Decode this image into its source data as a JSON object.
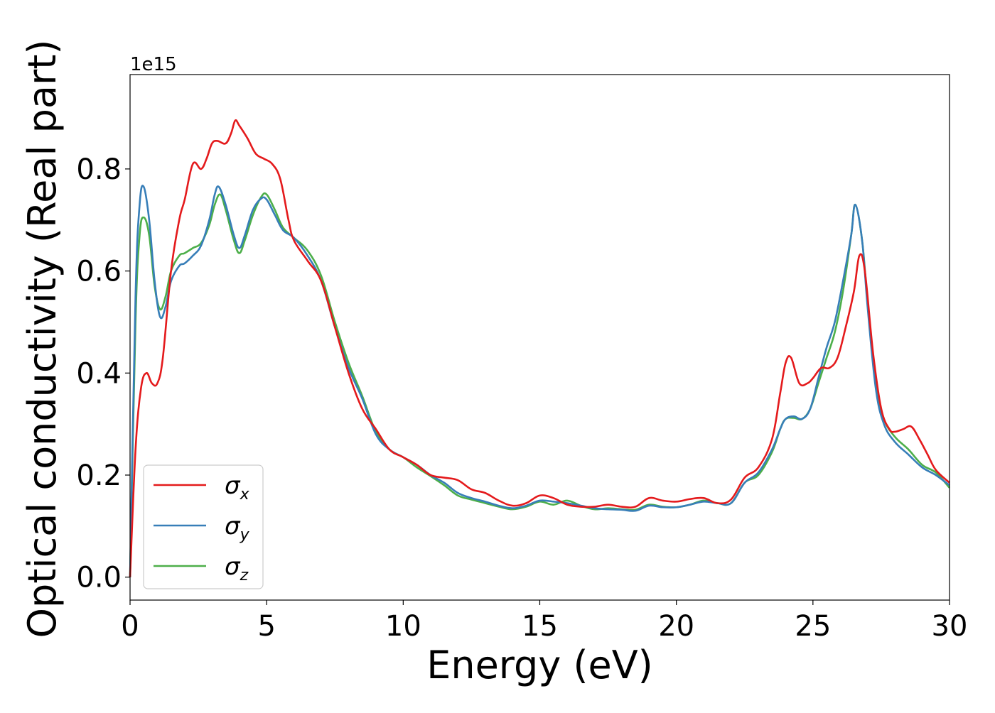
{
  "chart_data": {
    "type": "line",
    "xlabel": "Energy (eV)",
    "ylabel": "Optical conductivity (Real part)",
    "y_offset_label": "1e15",
    "xlim": [
      0,
      30
    ],
    "ylim": [
      -0.045,
      0.985
    ],
    "x_ticks": [
      0,
      5,
      10,
      15,
      20,
      25,
      30
    ],
    "x_tick_labels": [
      "0",
      "5",
      "10",
      "15",
      "20",
      "25",
      "30"
    ],
    "y_ticks": [
      0.0,
      0.2,
      0.4,
      0.6,
      0.8
    ],
    "y_tick_labels": [
      "0.0",
      "0.2",
      "0.4",
      "0.6",
      "0.8"
    ],
    "grid": false,
    "legend_position": "lower-left",
    "series": [
      {
        "name": "σ",
        "subscript": "x",
        "color": "#e41a1c",
        "x": [
          0,
          0.2,
          0.4,
          0.6,
          0.8,
          1.0,
          1.2,
          1.5,
          1.8,
          2.0,
          2.3,
          2.6,
          2.8,
          3.0,
          3.2,
          3.5,
          3.7,
          3.85,
          4.0,
          4.3,
          4.6,
          4.9,
          5.2,
          5.5,
          5.8,
          6.0,
          6.5,
          7.0,
          7.5,
          8.0,
          8.5,
          9.0,
          9.5,
          10.0,
          10.5,
          11.0,
          11.5,
          12.0,
          12.5,
          13.0,
          13.5,
          14.0,
          14.5,
          15.0,
          15.5,
          16.0,
          16.5,
          17.0,
          17.5,
          18.0,
          18.5,
          19.0,
          19.5,
          20.0,
          20.5,
          21.0,
          21.5,
          22.0,
          22.5,
          23.0,
          23.5,
          23.8,
          24.0,
          24.2,
          24.5,
          24.8,
          25.0,
          25.3,
          25.6,
          25.9,
          26.2,
          26.5,
          26.7,
          26.9,
          27.2,
          27.5,
          27.8,
          28.0,
          28.3,
          28.6,
          28.9,
          29.2,
          29.5,
          30.0
        ],
        "values": [
          0.0,
          0.25,
          0.37,
          0.4,
          0.38,
          0.38,
          0.43,
          0.6,
          0.7,
          0.74,
          0.81,
          0.8,
          0.82,
          0.85,
          0.855,
          0.85,
          0.87,
          0.895,
          0.885,
          0.86,
          0.83,
          0.82,
          0.81,
          0.78,
          0.7,
          0.66,
          0.62,
          0.58,
          0.49,
          0.4,
          0.33,
          0.29,
          0.25,
          0.235,
          0.22,
          0.2,
          0.195,
          0.19,
          0.172,
          0.165,
          0.15,
          0.14,
          0.145,
          0.16,
          0.155,
          0.142,
          0.138,
          0.138,
          0.142,
          0.138,
          0.138,
          0.155,
          0.15,
          0.148,
          0.153,
          0.155,
          0.145,
          0.152,
          0.195,
          0.215,
          0.27,
          0.36,
          0.42,
          0.43,
          0.38,
          0.38,
          0.39,
          0.41,
          0.41,
          0.43,
          0.49,
          0.56,
          0.63,
          0.6,
          0.44,
          0.33,
          0.29,
          0.285,
          0.29,
          0.295,
          0.27,
          0.24,
          0.21,
          0.185
        ]
      },
      {
        "name": "σ",
        "subscript": "y",
        "color": "#377eb8",
        "x": [
          0,
          0.2,
          0.35,
          0.5,
          0.7,
          0.9,
          1.1,
          1.3,
          1.5,
          1.8,
          2.0,
          2.3,
          2.6,
          2.9,
          3.1,
          3.25,
          3.5,
          3.8,
          4.0,
          4.2,
          4.5,
          4.8,
          5.0,
          5.3,
          5.6,
          6.0,
          6.5,
          7.0,
          7.5,
          8.0,
          8.5,
          9.0,
          9.5,
          10.0,
          10.5,
          11.0,
          11.5,
          12.0,
          12.5,
          13.0,
          13.5,
          14.0,
          14.5,
          15.0,
          15.5,
          16.0,
          16.5,
          17.0,
          17.5,
          18.0,
          18.5,
          19.0,
          19.5,
          20.0,
          20.5,
          21.0,
          21.5,
          22.0,
          22.5,
          23.0,
          23.5,
          23.8,
          24.0,
          24.3,
          24.6,
          24.9,
          25.2,
          25.5,
          25.8,
          26.1,
          26.4,
          26.55,
          26.8,
          27.0,
          27.3,
          27.6,
          28.0,
          28.5,
          29.0,
          29.5,
          30.0
        ],
        "values": [
          0.0,
          0.55,
          0.73,
          0.765,
          0.7,
          0.58,
          0.51,
          0.53,
          0.58,
          0.61,
          0.615,
          0.63,
          0.65,
          0.7,
          0.75,
          0.765,
          0.73,
          0.67,
          0.645,
          0.67,
          0.72,
          0.742,
          0.74,
          0.71,
          0.68,
          0.665,
          0.63,
          0.58,
          0.49,
          0.41,
          0.35,
          0.28,
          0.25,
          0.235,
          0.22,
          0.2,
          0.185,
          0.165,
          0.155,
          0.148,
          0.14,
          0.135,
          0.14,
          0.15,
          0.148,
          0.145,
          0.14,
          0.135,
          0.133,
          0.132,
          0.13,
          0.14,
          0.137,
          0.137,
          0.142,
          0.148,
          0.145,
          0.145,
          0.185,
          0.205,
          0.25,
          0.29,
          0.31,
          0.315,
          0.31,
          0.33,
          0.39,
          0.45,
          0.5,
          0.58,
          0.67,
          0.73,
          0.66,
          0.53,
          0.37,
          0.3,
          0.265,
          0.24,
          0.215,
          0.2,
          0.18
        ]
      },
      {
        "name": "σ",
        "subscript": "z",
        "color": "#4daf4a",
        "x": [
          0,
          0.2,
          0.35,
          0.5,
          0.7,
          0.9,
          1.1,
          1.3,
          1.5,
          1.8,
          2.0,
          2.3,
          2.6,
          2.9,
          3.1,
          3.3,
          3.5,
          3.8,
          4.0,
          4.2,
          4.5,
          4.8,
          5.0,
          5.3,
          5.6,
          6.0,
          6.5,
          7.0,
          7.5,
          8.0,
          8.5,
          9.0,
          9.5,
          10.0,
          10.5,
          11.0,
          11.5,
          12.0,
          12.5,
          13.0,
          13.5,
          14.0,
          14.5,
          15.0,
          15.5,
          16.0,
          16.5,
          17.0,
          17.5,
          18.0,
          18.5,
          19.0,
          19.5,
          20.0,
          20.5,
          21.0,
          21.5,
          22.0,
          22.5,
          23.0,
          23.5,
          23.8,
          24.0,
          24.3,
          24.6,
          24.9,
          25.2,
          25.5,
          25.8,
          26.1,
          26.4,
          26.55,
          26.8,
          27.0,
          27.3,
          27.6,
          28.0,
          28.5,
          29.0,
          29.5,
          30.0
        ],
        "values": [
          0.0,
          0.5,
          0.67,
          0.705,
          0.67,
          0.57,
          0.525,
          0.55,
          0.6,
          0.63,
          0.635,
          0.645,
          0.655,
          0.69,
          0.73,
          0.75,
          0.72,
          0.66,
          0.635,
          0.66,
          0.71,
          0.745,
          0.75,
          0.72,
          0.685,
          0.665,
          0.64,
          0.59,
          0.5,
          0.42,
          0.355,
          0.285,
          0.25,
          0.235,
          0.215,
          0.198,
          0.18,
          0.16,
          0.152,
          0.145,
          0.138,
          0.133,
          0.138,
          0.148,
          0.142,
          0.15,
          0.14,
          0.133,
          0.135,
          0.133,
          0.132,
          0.142,
          0.138,
          0.137,
          0.142,
          0.15,
          0.145,
          0.145,
          0.185,
          0.2,
          0.245,
          0.29,
          0.31,
          0.312,
          0.31,
          0.33,
          0.38,
          0.43,
          0.48,
          0.56,
          0.67,
          0.73,
          0.66,
          0.54,
          0.38,
          0.31,
          0.275,
          0.25,
          0.22,
          0.205,
          0.175
        ]
      }
    ]
  }
}
